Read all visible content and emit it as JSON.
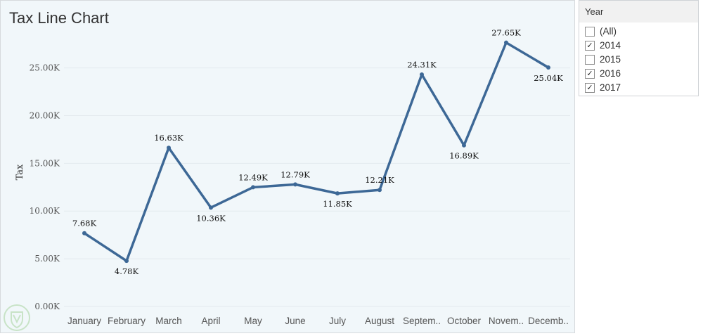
{
  "chart_data": {
    "type": "line",
    "title": "Tax Line Chart",
    "xlabel": "",
    "ylabel": "Tax",
    "categories": [
      "January",
      "February",
      "March",
      "April",
      "May",
      "June",
      "July",
      "August",
      "Septem..",
      "October",
      "Novem..",
      "Decemb.."
    ],
    "values": [
      7680,
      4780,
      16630,
      10360,
      12490,
      12790,
      11850,
      12210,
      24310,
      16890,
      27650,
      25040
    ],
    "value_labels": [
      "7.68K",
      "4.78K",
      "16.63K",
      "10.36K",
      "12.49K",
      "12.79K",
      "11.85K",
      "12.21K",
      "24.31K",
      "16.89K",
      "27.65K",
      "25.04K"
    ],
    "ylim": [
      0,
      29000
    ],
    "y_ticks": [
      0,
      5000,
      10000,
      15000,
      20000,
      25000
    ],
    "y_tick_labels": [
      "0.00K",
      "5.00K",
      "10.00K",
      "15.00K",
      "20.00K",
      "25.00K"
    ],
    "grid": true,
    "line_color": "#3d6896"
  },
  "legend": {
    "title": "Year",
    "items": [
      {
        "label": "(All)",
        "checked": false
      },
      {
        "label": "2014",
        "checked": true
      },
      {
        "label": "2015",
        "checked": false
      },
      {
        "label": "2016",
        "checked": true
      },
      {
        "label": "2017",
        "checked": true
      }
    ]
  },
  "colors": {
    "background": "#f1f7fa",
    "line": "#3d6896"
  }
}
